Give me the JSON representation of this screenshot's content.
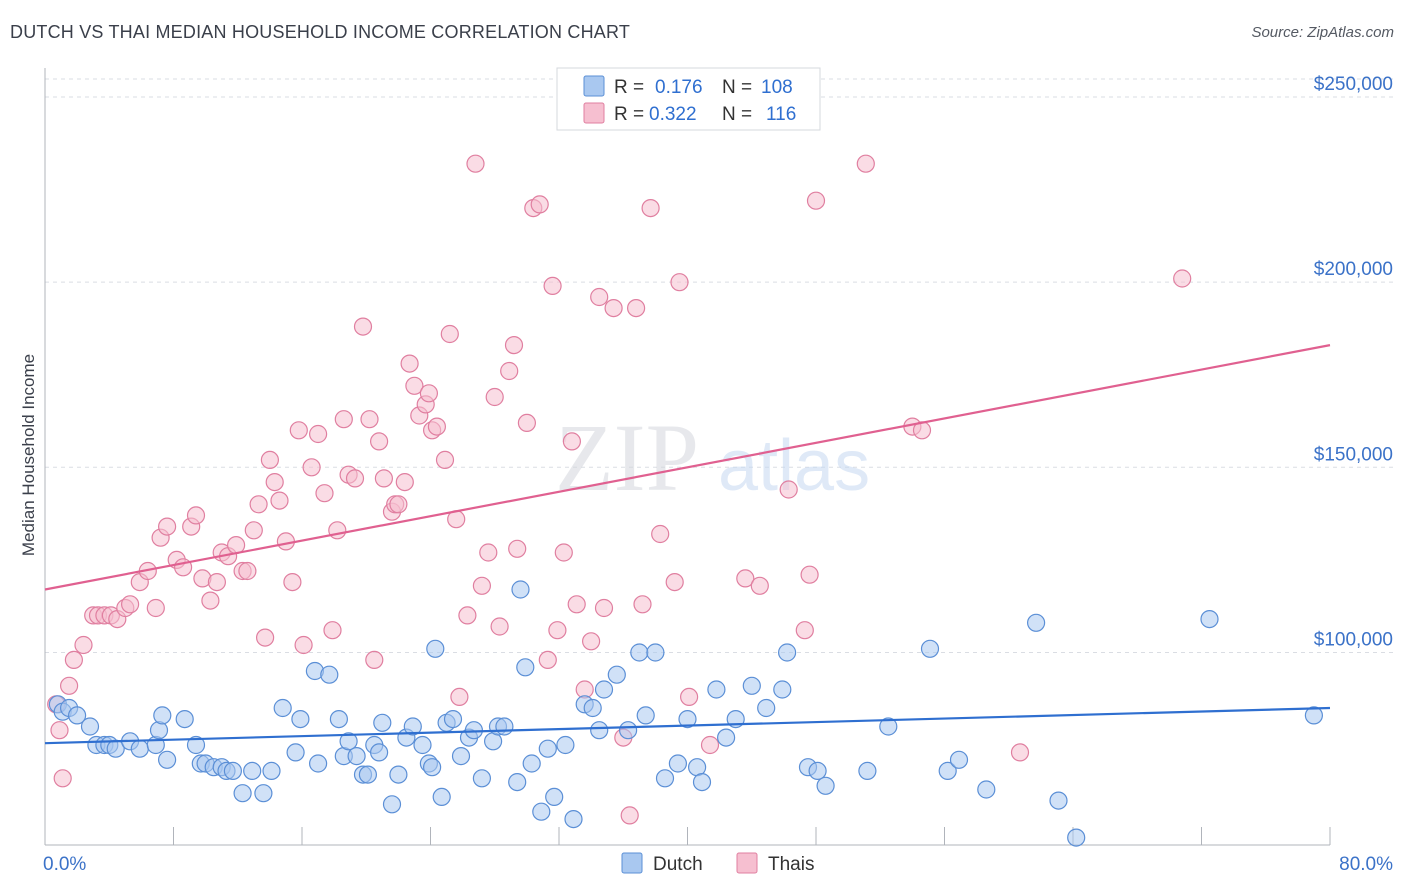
{
  "header": {
    "title": "DUTCH VS THAI MEDIAN HOUSEHOLD INCOME CORRELATION CHART",
    "source": "Source: ZipAtlas.com"
  },
  "watermark": {
    "zip": "ZIP",
    "atlas": "atlas"
  },
  "legend": {
    "rows": [
      {
        "r_label": "R =",
        "r_value": "0.176",
        "n_label": "N =",
        "n_value": "108"
      },
      {
        "r_label": "R =",
        "r_value": "0.322",
        "n_label": "N =",
        "n_value": "116"
      }
    ]
  },
  "colors": {
    "dutch_fill": "#a9c8f0",
    "dutch_stroke": "#5b8fd6",
    "dutch_line": "#2f6fd0",
    "thai_fill": "#f6bfd0",
    "thai_stroke": "#e07fa0",
    "thai_line": "#e06090",
    "axis_text": "#3b72c8",
    "grid": "#dadde3"
  },
  "chart_data": {
    "type": "scatter",
    "title": "DUTCH VS THAI MEDIAN HOUSEHOLD INCOME CORRELATION CHART",
    "xlabel": "",
    "ylabel": "Median Household Income",
    "xlim": [
      0,
      80
    ],
    "ylim": [
      48000,
      260000
    ],
    "x_tick_labels": [
      "0.0%",
      "80.0%"
    ],
    "y_ticks": [
      100000,
      150000,
      200000,
      250000
    ],
    "y_tick_labels": [
      "$100,000",
      "$150,000",
      "$200,000",
      "$250,000"
    ],
    "grid": true,
    "legend_position": "bottom-center",
    "series": [
      {
        "name": "Dutch",
        "r": 0.176,
        "n": 108,
        "trend": {
          "x": [
            0,
            80
          ],
          "y": [
            75500,
            85000
          ]
        },
        "points": [
          [
            0.8,
            86
          ],
          [
            1.1,
            84
          ],
          [
            1.5,
            85
          ],
          [
            2.0,
            83
          ],
          [
            2.8,
            80
          ],
          [
            3.2,
            75
          ],
          [
            3.7,
            75
          ],
          [
            4.0,
            75
          ],
          [
            4.4,
            74
          ],
          [
            5.3,
            76
          ],
          [
            5.9,
            74
          ],
          [
            6.9,
            75
          ],
          [
            7.1,
            79
          ],
          [
            7.3,
            83
          ],
          [
            7.6,
            71
          ],
          [
            8.7,
            82
          ],
          [
            9.4,
            75
          ],
          [
            9.7,
            70
          ],
          [
            10.0,
            70
          ],
          [
            10.5,
            69
          ],
          [
            11.0,
            69
          ],
          [
            11.3,
            68
          ],
          [
            11.7,
            68
          ],
          [
            12.3,
            62
          ],
          [
            12.9,
            68
          ],
          [
            13.6,
            62
          ],
          [
            14.1,
            68
          ],
          [
            14.8,
            85
          ],
          [
            15.6,
            73
          ],
          [
            15.9,
            82
          ],
          [
            16.8,
            95
          ],
          [
            17.0,
            70
          ],
          [
            17.7,
            94
          ],
          [
            18.3,
            82
          ],
          [
            18.6,
            72
          ],
          [
            18.9,
            76
          ],
          [
            19.4,
            72
          ],
          [
            19.8,
            67
          ],
          [
            20.1,
            67
          ],
          [
            20.5,
            75
          ],
          [
            20.8,
            73
          ],
          [
            21.0,
            81
          ],
          [
            21.6,
            59
          ],
          [
            22.0,
            67
          ],
          [
            22.5,
            77
          ],
          [
            22.9,
            80
          ],
          [
            23.5,
            75
          ],
          [
            23.9,
            70
          ],
          [
            24.1,
            69
          ],
          [
            24.3,
            101
          ],
          [
            24.7,
            61
          ],
          [
            25.0,
            81
          ],
          [
            25.4,
            82
          ],
          [
            25.9,
            72
          ],
          [
            26.4,
            77
          ],
          [
            26.7,
            79
          ],
          [
            27.2,
            66
          ],
          [
            27.9,
            76
          ],
          [
            28.2,
            80
          ],
          [
            28.6,
            80
          ],
          [
            29.4,
            65
          ],
          [
            29.6,
            117
          ],
          [
            29.9,
            96
          ],
          [
            30.3,
            70
          ],
          [
            30.9,
            57
          ],
          [
            31.3,
            74
          ],
          [
            31.7,
            61
          ],
          [
            32.4,
            75
          ],
          [
            32.9,
            55
          ],
          [
            33.6,
            86
          ],
          [
            34.1,
            85
          ],
          [
            34.5,
            79
          ],
          [
            34.8,
            90
          ],
          [
            35.6,
            94
          ],
          [
            36.3,
            79
          ],
          [
            37.0,
            100
          ],
          [
            37.4,
            83
          ],
          [
            38.0,
            100
          ],
          [
            38.6,
            66
          ],
          [
            39.4,
            70
          ],
          [
            40.0,
            82
          ],
          [
            40.6,
            69
          ],
          [
            40.9,
            65
          ],
          [
            41.8,
            90
          ],
          [
            42.4,
            77
          ],
          [
            43.0,
            82
          ],
          [
            44.0,
            91
          ],
          [
            44.9,
            85
          ],
          [
            45.9,
            90
          ],
          [
            46.2,
            100
          ],
          [
            47.5,
            69
          ],
          [
            48.1,
            68
          ],
          [
            48.6,
            64
          ],
          [
            51.2,
            68
          ],
          [
            52.5,
            80
          ],
          [
            55.1,
            101
          ],
          [
            56.2,
            68
          ],
          [
            56.9,
            71
          ],
          [
            58.6,
            63
          ],
          [
            61.7,
            108
          ],
          [
            63.1,
            60
          ],
          [
            64.2,
            50
          ],
          [
            72.5,
            109
          ],
          [
            79.0,
            83
          ]
        ]
      },
      {
        "name": "Thais",
        "r": 0.322,
        "n": 116,
        "trend": {
          "x": [
            0,
            80
          ],
          "y": [
            117000,
            183000
          ]
        },
        "points": [
          [
            0.7,
            86
          ],
          [
            0.9,
            79
          ],
          [
            1.1,
            66
          ],
          [
            1.5,
            91
          ],
          [
            1.8,
            98
          ],
          [
            2.4,
            102
          ],
          [
            3.0,
            110
          ],
          [
            3.3,
            110
          ],
          [
            3.7,
            110
          ],
          [
            4.1,
            110
          ],
          [
            4.5,
            109
          ],
          [
            5.0,
            112
          ],
          [
            5.3,
            113
          ],
          [
            5.9,
            119
          ],
          [
            6.4,
            122
          ],
          [
            6.9,
            112
          ],
          [
            7.2,
            131
          ],
          [
            7.6,
            134
          ],
          [
            8.2,
            125
          ],
          [
            8.6,
            123
          ],
          [
            9.1,
            134
          ],
          [
            9.4,
            137
          ],
          [
            9.8,
            120
          ],
          [
            10.3,
            114
          ],
          [
            10.7,
            119
          ],
          [
            11.0,
            127
          ],
          [
            11.4,
            126
          ],
          [
            11.9,
            129
          ],
          [
            12.3,
            122
          ],
          [
            12.6,
            122
          ],
          [
            13.0,
            133
          ],
          [
            13.3,
            140
          ],
          [
            13.7,
            104
          ],
          [
            14.0,
            152
          ],
          [
            14.3,
            146
          ],
          [
            14.6,
            141
          ],
          [
            15.0,
            130
          ],
          [
            15.4,
            119
          ],
          [
            15.8,
            160
          ],
          [
            16.1,
            102
          ],
          [
            16.6,
            150
          ],
          [
            17.0,
            159
          ],
          [
            17.4,
            143
          ],
          [
            17.9,
            106
          ],
          [
            18.2,
            133
          ],
          [
            18.6,
            163
          ],
          [
            18.9,
            148
          ],
          [
            19.3,
            147
          ],
          [
            19.8,
            188
          ],
          [
            20.2,
            163
          ],
          [
            20.5,
            98
          ],
          [
            20.8,
            157
          ],
          [
            21.1,
            147
          ],
          [
            21.6,
            138
          ],
          [
            21.8,
            140
          ],
          [
            22.0,
            140
          ],
          [
            22.4,
            146
          ],
          [
            22.7,
            178
          ],
          [
            23.0,
            172
          ],
          [
            23.3,
            164
          ],
          [
            23.7,
            167
          ],
          [
            23.9,
            170
          ],
          [
            24.1,
            160
          ],
          [
            24.4,
            161
          ],
          [
            24.9,
            152
          ],
          [
            25.2,
            186
          ],
          [
            25.6,
            136
          ],
          [
            25.8,
            88
          ],
          [
            26.3,
            110
          ],
          [
            26.8,
            232
          ],
          [
            27.2,
            118
          ],
          [
            27.6,
            127
          ],
          [
            28.0,
            169
          ],
          [
            28.3,
            107
          ],
          [
            28.9,
            176
          ],
          [
            29.2,
            183
          ],
          [
            29.4,
            128
          ],
          [
            30.0,
            162
          ],
          [
            30.4,
            220
          ],
          [
            30.8,
            221
          ],
          [
            31.3,
            98
          ],
          [
            31.6,
            199
          ],
          [
            31.9,
            106
          ],
          [
            32.3,
            127
          ],
          [
            32.8,
            157
          ],
          [
            33.1,
            113
          ],
          [
            33.6,
            90
          ],
          [
            34.0,
            103
          ],
          [
            34.5,
            196
          ],
          [
            34.8,
            112
          ],
          [
            35.4,
            193
          ],
          [
            36.0,
            77
          ],
          [
            36.4,
            56
          ],
          [
            36.8,
            193
          ],
          [
            37.2,
            113
          ],
          [
            37.7,
            220
          ],
          [
            38.3,
            132
          ],
          [
            39.2,
            119
          ],
          [
            39.5,
            200
          ],
          [
            40.1,
            88
          ],
          [
            41.4,
            75
          ],
          [
            43.6,
            120
          ],
          [
            44.5,
            118
          ],
          [
            46.3,
            144
          ],
          [
            47.3,
            106
          ],
          [
            47.6,
            121
          ],
          [
            48.0,
            222
          ],
          [
            51.1,
            232
          ],
          [
            54.0,
            161
          ],
          [
            54.6,
            160
          ],
          [
            60.7,
            73
          ],
          [
            70.8,
            201
          ]
        ]
      }
    ]
  }
}
